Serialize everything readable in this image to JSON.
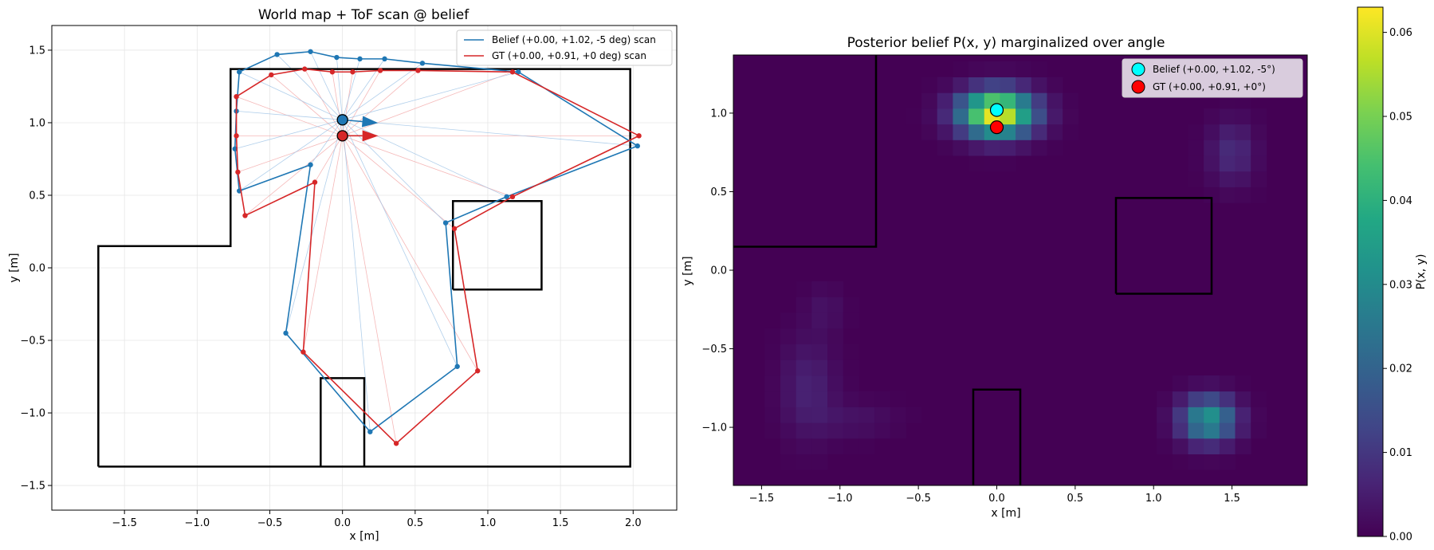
{
  "chart_data": [
    {
      "type": "line",
      "title": "World map + ToF scan @ belief",
      "xlabel": "x [m]",
      "ylabel": "y [m]",
      "xlim": [
        -2.0,
        2.3
      ],
      "ylim": [
        -1.67,
        1.67
      ],
      "xticks": [
        -1.5,
        -1.0,
        -0.5,
        0.0,
        0.5,
        1.0,
        1.5,
        2.0
      ],
      "xtick_labels": [
        "−1.5",
        "−1.0",
        "−0.5",
        "0.0",
        "0.5",
        "1.0",
        "1.5",
        "2.0"
      ],
      "yticks": [
        -1.5,
        -1.0,
        -0.5,
        0.0,
        0.5,
        1.0,
        1.5
      ],
      "ytick_labels": [
        "−1.5",
        "−1.0",
        "−0.5",
        "0.0",
        "0.5",
        "1.0",
        "1.5"
      ],
      "grid": true,
      "legend_position": "upper-right",
      "walls": [
        [
          [
            -1.68,
            -1.37
          ],
          [
            1.98,
            -1.37
          ],
          [
            1.98,
            1.37
          ],
          [
            -0.77,
            1.37
          ],
          [
            -0.77,
            0.15
          ],
          [
            -1.68,
            0.15
          ],
          [
            -1.68,
            -1.37
          ]
        ],
        [
          [
            0.76,
            -0.15
          ],
          [
            1.37,
            -0.15
          ],
          [
            1.37,
            0.46
          ],
          [
            0.76,
            0.46
          ],
          [
            0.76,
            -0.15
          ]
        ],
        [
          [
            -0.15,
            -1.37
          ],
          [
            -0.15,
            -0.76
          ],
          [
            0.15,
            -0.76
          ],
          [
            0.15,
            -1.37
          ]
        ]
      ],
      "series": [
        {
          "name": "Belief (+0.00, +1.02, -5 deg) scan",
          "color": "#1f77b4",
          "pose": {
            "x": 0.0,
            "y": 1.02,
            "theta_deg": -5
          },
          "points": [
            [
              2.03,
              0.84
            ],
            [
              1.13,
              0.49
            ],
            [
              0.71,
              0.31
            ],
            [
              0.79,
              -0.68
            ],
            [
              0.19,
              -1.13
            ],
            [
              -0.39,
              -0.45
            ],
            [
              -0.22,
              0.71
            ],
            [
              -0.71,
              0.53
            ],
            [
              -0.74,
              0.82
            ],
            [
              -0.73,
              1.08
            ],
            [
              -0.71,
              1.35
            ],
            [
              -0.45,
              1.47
            ],
            [
              -0.22,
              1.49
            ],
            [
              -0.04,
              1.45
            ],
            [
              0.12,
              1.44
            ],
            [
              0.29,
              1.44
            ],
            [
              0.55,
              1.41
            ],
            [
              1.21,
              1.35
            ],
            [
              2.03,
              0.84
            ]
          ]
        },
        {
          "name": "GT (+0.00, +0.91, +0 deg) scan",
          "color": "#d62728",
          "pose": {
            "x": 0.0,
            "y": 0.91,
            "theta_deg": 0
          },
          "points": [
            [
              2.04,
              0.91
            ],
            [
              1.17,
              0.49
            ],
            [
              0.77,
              0.27
            ],
            [
              0.93,
              -0.71
            ],
            [
              0.37,
              -1.21
            ],
            [
              -0.27,
              -0.58
            ],
            [
              -0.19,
              0.59
            ],
            [
              -0.67,
              0.36
            ],
            [
              -0.72,
              0.66
            ],
            [
              -0.73,
              0.91
            ],
            [
              -0.73,
              1.18
            ],
            [
              -0.49,
              1.33
            ],
            [
              -0.26,
              1.37
            ],
            [
              -0.07,
              1.35
            ],
            [
              0.07,
              1.35
            ],
            [
              0.26,
              1.36
            ],
            [
              0.52,
              1.36
            ],
            [
              1.17,
              1.35
            ],
            [
              2.04,
              0.91
            ]
          ]
        }
      ]
    },
    {
      "type": "heatmap",
      "title": "Posterior belief P(x, y) marginalized over angle",
      "xlabel": "x [m]",
      "ylabel": "y [m]",
      "xlim": [
        -1.68,
        1.98
      ],
      "ylim": [
        -1.37,
        1.37
      ],
      "xticks": [
        -1.5,
        -1.0,
        -0.5,
        0.0,
        0.5,
        1.0,
        1.5
      ],
      "xtick_labels": [
        "−1.5",
        "−1.0",
        "−0.5",
        "0.0",
        "0.5",
        "1.0",
        "1.5"
      ],
      "yticks": [
        -1.0,
        -0.5,
        0.0,
        0.5,
        1.0
      ],
      "ytick_labels": [
        "−1.0",
        "−0.5",
        "0.0",
        "0.5",
        "1.0"
      ],
      "cell_size": 0.1,
      "colorbar": {
        "label": "P(x, y)",
        "min": 0.0,
        "max": 0.063,
        "ticks": [
          0.0,
          0.01,
          0.02,
          0.03,
          0.04,
          0.05,
          0.06
        ],
        "tick_labels": [
          "0.00",
          "0.01",
          "0.02",
          "0.03",
          "0.04",
          "0.05",
          "0.06"
        ]
      },
      "blobs": [
        {
          "x": 0.0,
          "y": 1.0,
          "sx": 0.16,
          "sy": 0.1,
          "peak": 0.063
        },
        {
          "x": 1.35,
          "y": -0.95,
          "sx": 0.12,
          "sy": 0.1,
          "peak": 0.033
        },
        {
          "x": 1.5,
          "y": 0.75,
          "sx": 0.1,
          "sy": 0.14,
          "peak": 0.008
        },
        {
          "x": -1.2,
          "y": -0.75,
          "sx": 0.12,
          "sy": 0.22,
          "peak": 0.006
        },
        {
          "x": -0.9,
          "y": -0.95,
          "sx": 0.18,
          "sy": 0.08,
          "peak": 0.003
        },
        {
          "x": -1.1,
          "y": -0.25,
          "sx": 0.08,
          "sy": 0.1,
          "peak": 0.003
        }
      ],
      "walls": [
        [
          [
            -1.68,
            0.15
          ],
          [
            -0.77,
            0.15
          ],
          [
            -0.77,
            1.37
          ]
        ],
        [
          [
            0.76,
            -0.15
          ],
          [
            1.37,
            -0.15
          ],
          [
            1.37,
            0.46
          ],
          [
            0.76,
            0.46
          ],
          [
            0.76,
            -0.15
          ]
        ],
        [
          [
            -0.15,
            -1.37
          ],
          [
            -0.15,
            -0.76
          ],
          [
            0.15,
            -0.76
          ],
          [
            0.15,
            -1.37
          ]
        ]
      ],
      "markers": [
        {
          "name": "Belief (+0.00, +1.02, -5°)",
          "x": 0.0,
          "y": 1.02,
          "color": "#00ffff"
        },
        {
          "name": "GT (+0.00, +0.91, +0°)",
          "x": 0.0,
          "y": 0.91,
          "color": "#ff0000"
        }
      ]
    }
  ]
}
